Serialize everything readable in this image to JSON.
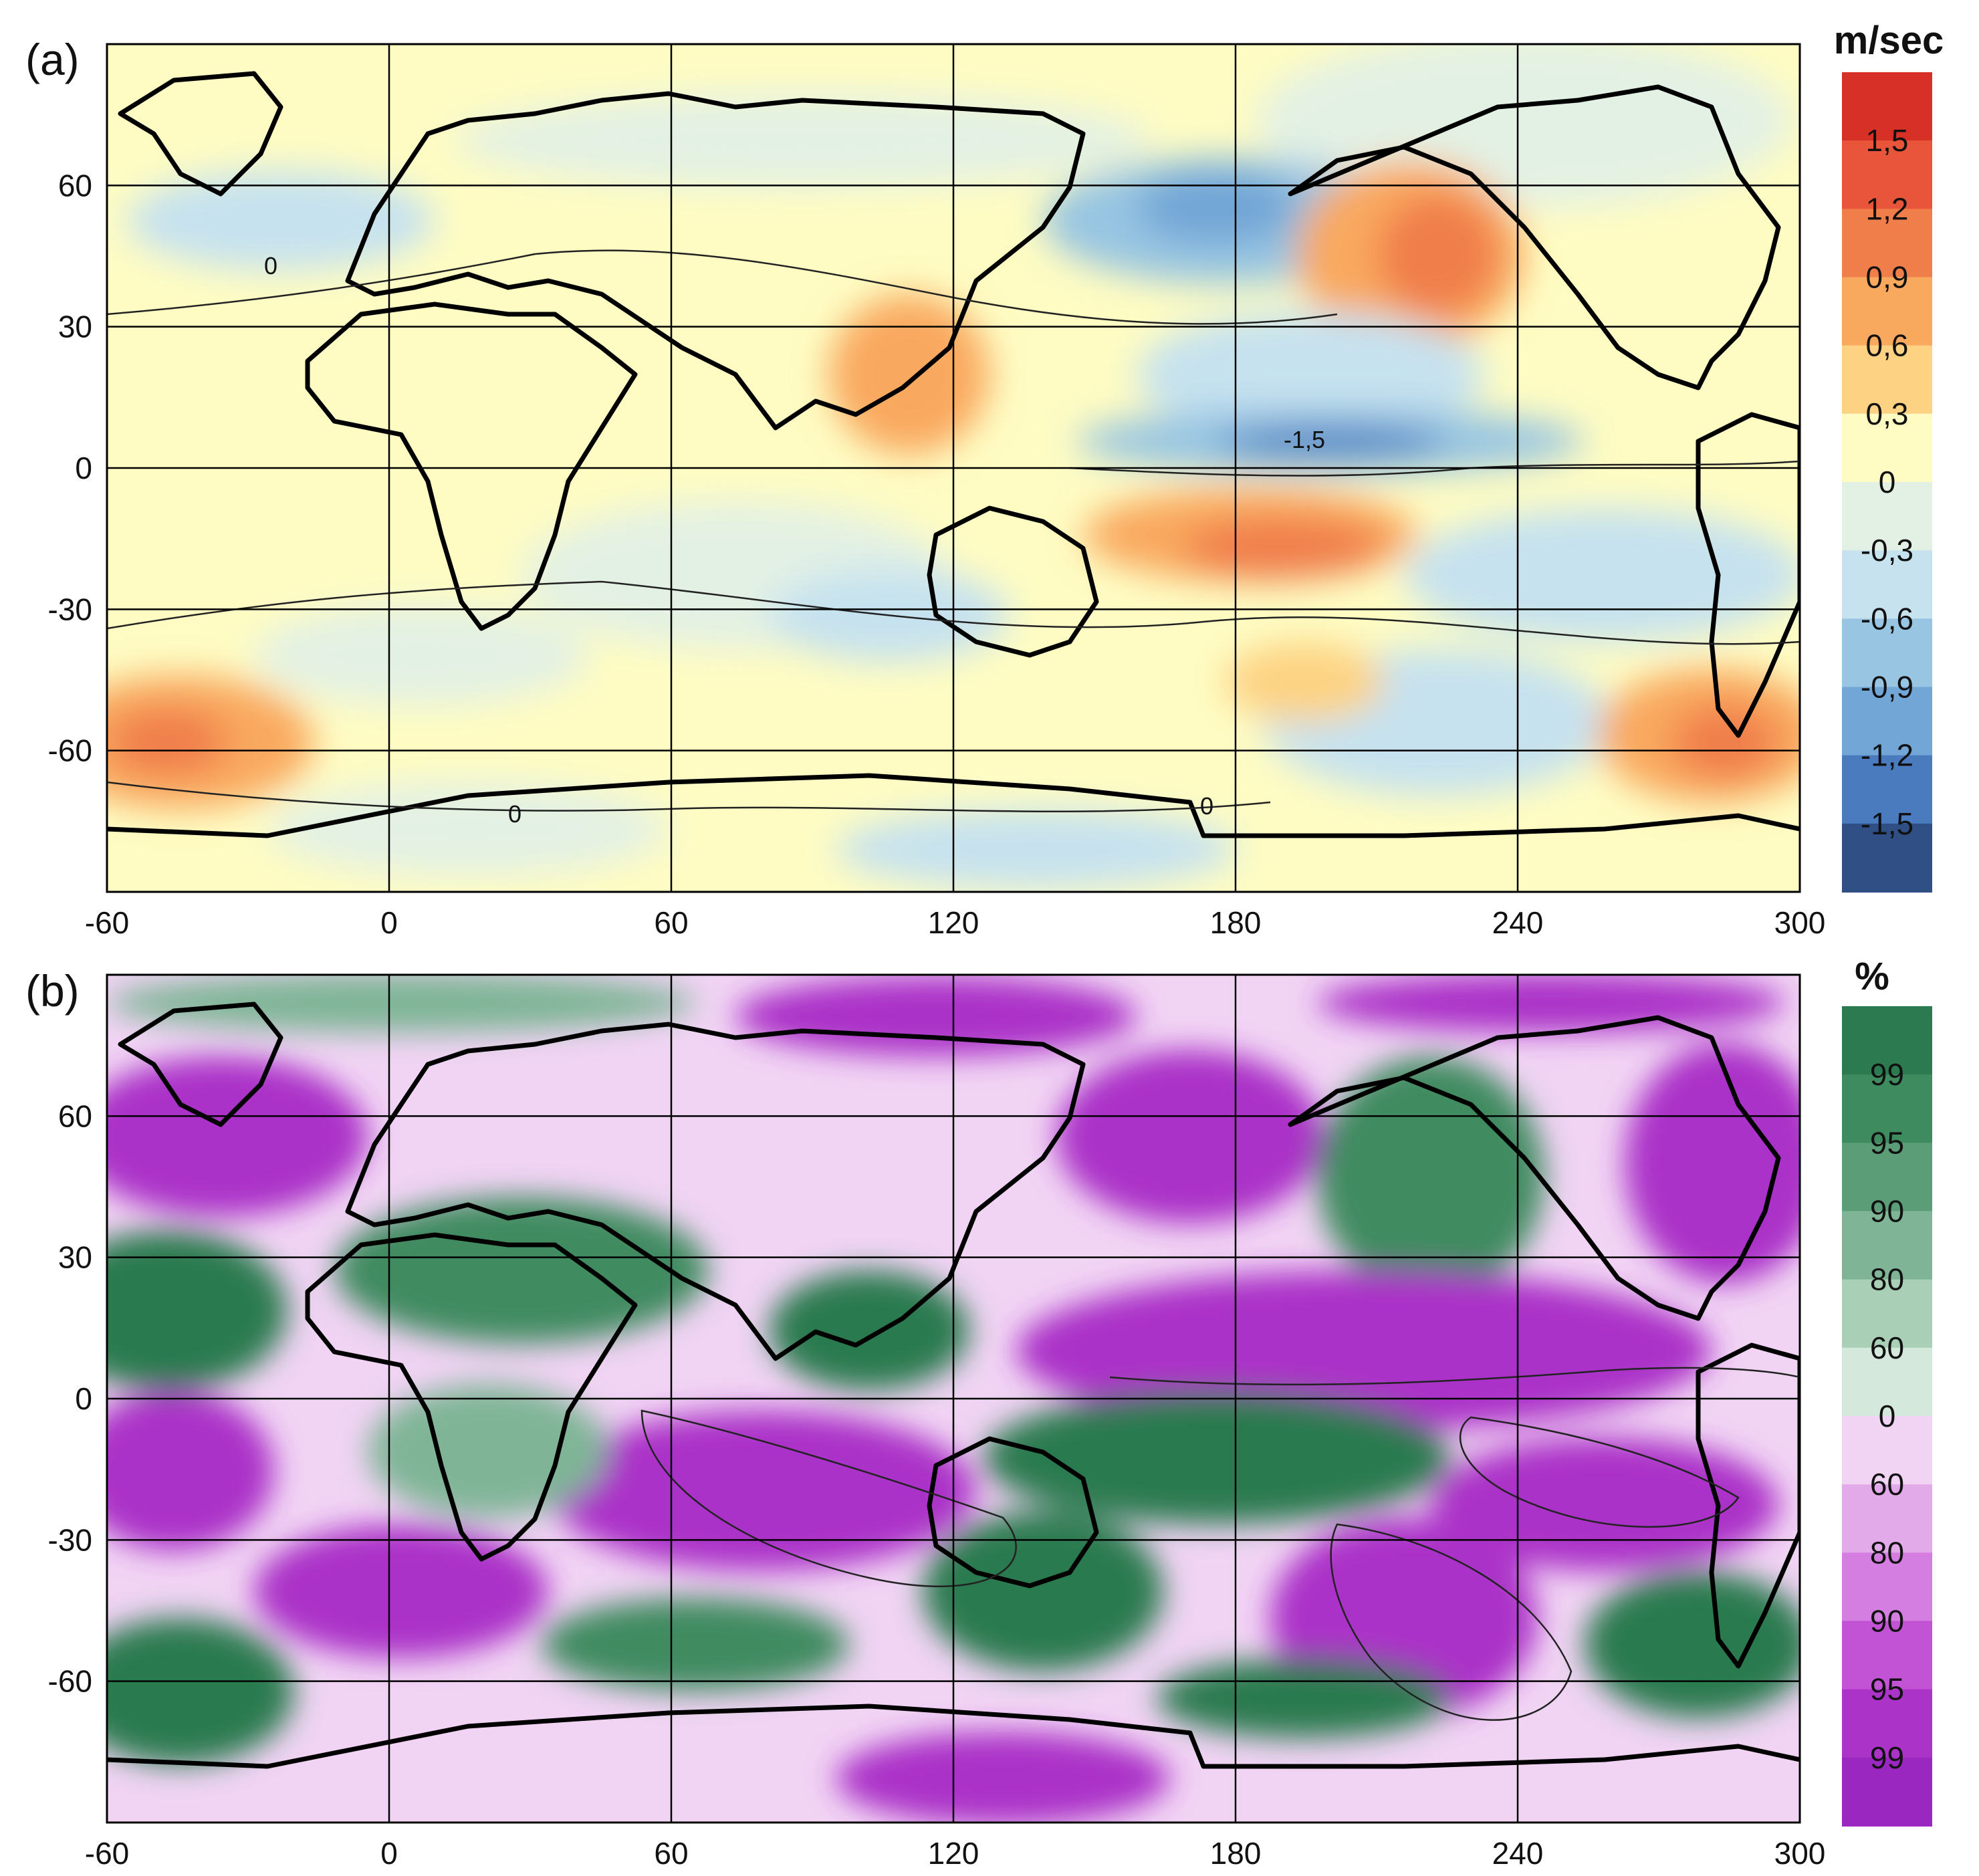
{
  "panels": [
    {
      "id": "a",
      "label": "(a)",
      "colorbar": {
        "title": "m/sec",
        "tick_labels": [
          "1,5",
          "1,2",
          "0,9",
          "0,6",
          "0,3",
          "0",
          "-0,3",
          "-0,6",
          "-0,9",
          "-1,2",
          "-1,5"
        ],
        "colors": [
          "#d73027",
          "#e8553a",
          "#f07e4b",
          "#f9a95e",
          "#fdd383",
          "#fefcc3",
          "#e3f1e4",
          "#c6e2ef",
          "#97c5e2",
          "#72a6d6",
          "#4b7bbf",
          "#2f4f85"
        ]
      },
      "contour_labels": [
        "0",
        "-1,5"
      ],
      "x_tick_labels": [
        "-60",
        "0",
        "60",
        "120",
        "180",
        "240",
        "300"
      ],
      "y_tick_labels": [
        "60",
        "30",
        "0",
        "-30",
        "-60"
      ]
    },
    {
      "id": "b",
      "label": "(b)",
      "colorbar": {
        "title": "%",
        "tick_labels": [
          "99",
          "95",
          "90",
          "80",
          "60",
          "0",
          "60",
          "80",
          "90",
          "95",
          "99"
        ],
        "colors": [
          "#2b7a50",
          "#3f8b60",
          "#5a9d77",
          "#7fb596",
          "#a9cfb7",
          "#d4e9dc",
          "#f1d4f4",
          "#e3aaea",
          "#d37ee0",
          "#c153d4",
          "#ab33c8",
          "#9a27bf"
        ]
      },
      "x_tick_labels": [
        "-60",
        "0",
        "60",
        "120",
        "180",
        "240",
        "300"
      ],
      "y_tick_labels": [
        "60",
        "30",
        "0",
        "-30",
        "-60"
      ]
    }
  ],
  "map": {
    "projection": "equirectangular",
    "lon_range": [
      -60,
      300
    ],
    "lat_range": [
      -90,
      90
    ],
    "gridlines": true,
    "grid_lon": [
      0,
      60,
      120,
      180,
      240
    ],
    "grid_lat": [
      60,
      30,
      0,
      -30,
      -60
    ]
  }
}
